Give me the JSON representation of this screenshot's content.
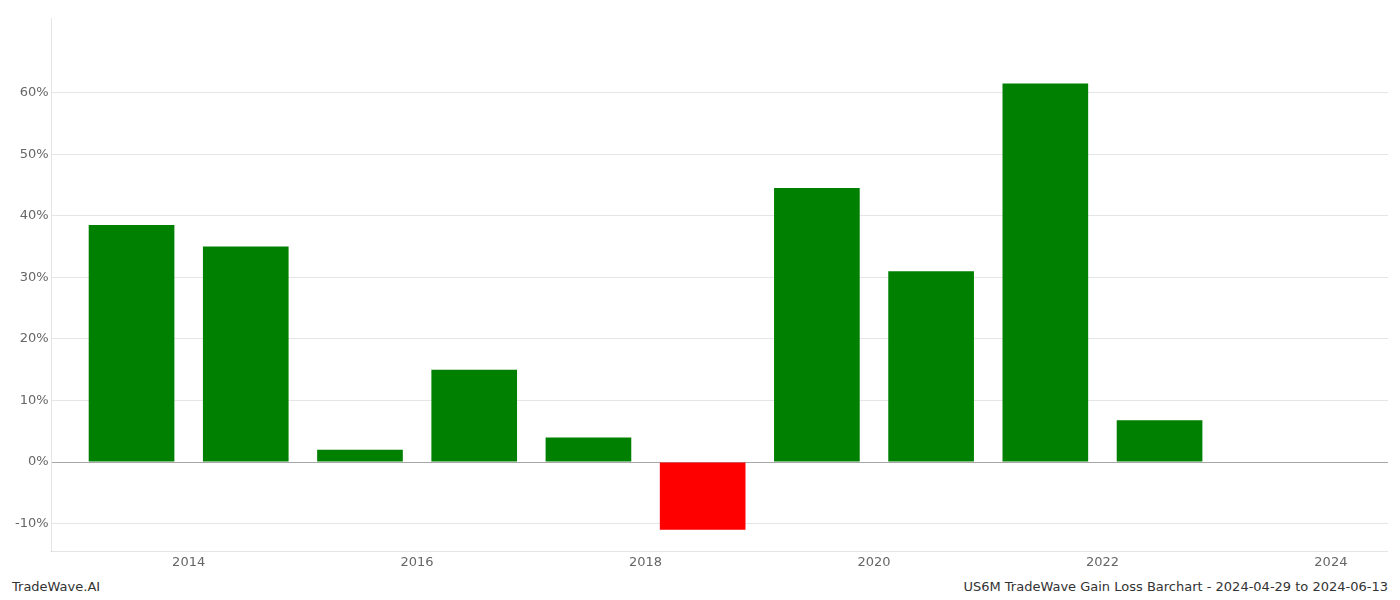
{
  "chart_data": {
    "type": "bar",
    "annotations": [
      "TradeWave.AI",
      "US6M TradeWave Gain Loss Barchart - 2024-04-29 to 2024-06-13"
    ],
    "x": [
      2013.5,
      2014.5,
      2015.5,
      2016.5,
      2017.5,
      2018.5,
      2019.5,
      2020.5,
      2021.5,
      2022.5
    ],
    "values": [
      0.385,
      0.35,
      0.02,
      0.15,
      0.04,
      -0.11,
      0.445,
      0.31,
      0.615,
      0.068
    ],
    "colors": [
      "#008000",
      "#008000",
      "#008000",
      "#008000",
      "#008000",
      "#ff0000",
      "#008000",
      "#008000",
      "#008000",
      "#008000"
    ],
    "xlim": [
      2012.8,
      2024.5
    ],
    "xticks": [
      2014,
      2016,
      2018,
      2020,
      2022,
      2024
    ],
    "ylim": [
      -0.145,
      0.72
    ],
    "yticks": [
      {
        "value": -0.1,
        "label": "-10%"
      },
      {
        "value": 0.0,
        "label": "0%"
      },
      {
        "value": 0.1,
        "label": "10%"
      },
      {
        "value": 0.2,
        "label": "20%"
      },
      {
        "value": 0.3,
        "label": "30%"
      },
      {
        "value": 0.4,
        "label": "40%"
      },
      {
        "value": 0.5,
        "label": "50%"
      },
      {
        "value": 0.6,
        "label": "60%"
      }
    ],
    "grid": "y"
  }
}
